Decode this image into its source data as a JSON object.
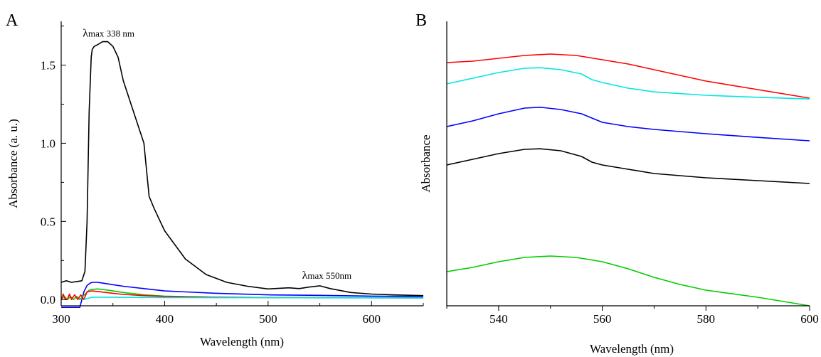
{
  "chart_data": [
    {
      "panel": "A",
      "type": "line",
      "xlabel": "Wavelength (nm)",
      "ylabel": "Absorbance (a. u.)",
      "xlim": [
        300,
        650
      ],
      "ylim": [
        -0.04,
        1.78
      ],
      "xticks": [
        300,
        400,
        500,
        600
      ],
      "yticks": [
        0.0,
        0.5,
        1.0,
        1.5
      ],
      "ytick_labels": [
        "0.0",
        "0.5",
        "1.0",
        "1.5"
      ],
      "annotations": [
        {
          "lambda": "λ",
          "text": "max 338 nm",
          "x": 338,
          "y": 1.7
        },
        {
          "lambda": "λ",
          "text": "max 550nm",
          "x": 550,
          "y": 0.15
        }
      ],
      "series": [
        {
          "color": "#000000",
          "x": [
            300,
            305,
            310,
            315,
            320,
            323,
            325,
            327,
            329,
            330,
            332,
            335,
            340,
            345,
            350,
            355,
            360,
            370,
            380,
            385,
            390,
            400,
            420,
            440,
            460,
            480,
            500,
            520,
            530,
            540,
            550,
            560,
            580,
            600,
            620,
            650
          ],
          "y": [
            0.11,
            0.12,
            0.11,
            0.115,
            0.12,
            0.18,
            0.5,
            1.2,
            1.55,
            1.6,
            1.62,
            1.63,
            1.65,
            1.65,
            1.62,
            1.55,
            1.4,
            1.2,
            1.0,
            0.66,
            0.58,
            0.44,
            0.26,
            0.16,
            0.11,
            0.085,
            0.068,
            0.075,
            0.07,
            0.08,
            0.088,
            0.07,
            0.045,
            0.035,
            0.03,
            0.025
          ]
        },
        {
          "color": "#0000ff",
          "x": [
            300,
            310,
            318,
            320,
            322,
            325,
            328,
            330,
            335,
            340,
            350,
            360,
            380,
            400,
            450,
            500,
            550,
            600,
            650
          ],
          "y": [
            -0.05,
            -0.05,
            -0.05,
            0.0,
            0.05,
            0.09,
            0.105,
            0.11,
            0.11,
            0.105,
            0.095,
            0.085,
            0.07,
            0.055,
            0.04,
            0.03,
            0.027,
            0.022,
            0.02
          ]
        },
        {
          "color": "#00cc00",
          "x": [
            300,
            303,
            306,
            309,
            312,
            315,
            318,
            321,
            324,
            327,
            330,
            335,
            340,
            350,
            360,
            380,
            400,
            450,
            500,
            550,
            600,
            650
          ],
          "y": [
            0.0,
            0.02,
            0.0,
            0.02,
            0.0,
            0.02,
            0.0,
            0.02,
            0.04,
            0.06,
            0.065,
            0.068,
            0.065,
            0.055,
            0.045,
            0.03,
            0.022,
            0.015,
            0.013,
            0.012,
            0.012,
            0.012
          ]
        },
        {
          "color": "#ff0000",
          "x": [
            300,
            302,
            304,
            306,
            308,
            310,
            313,
            316,
            319,
            322,
            325,
            330,
            340,
            350,
            360,
            380,
            400,
            450,
            500,
            550,
            600,
            650
          ],
          "y": [
            0.0,
            0.035,
            0.0,
            0.0,
            0.035,
            0.0,
            0.03,
            0.0,
            0.03,
            0.0,
            0.05,
            0.055,
            0.048,
            0.04,
            0.033,
            0.025,
            0.02,
            0.015,
            0.013,
            0.012,
            0.011,
            0.01
          ]
        },
        {
          "color": "#00e5e5",
          "x": [
            322,
            330,
            340,
            360,
            400,
            450,
            500,
            550,
            600,
            650
          ],
          "y": [
            0.0,
            0.015,
            0.015,
            0.014,
            0.013,
            0.012,
            0.012,
            0.011,
            0.011,
            0.01
          ]
        }
      ]
    },
    {
      "panel": "B",
      "type": "line",
      "xlabel": "Wavelength (nm)",
      "ylabel": "Absorbance",
      "xlim": [
        530,
        600
      ],
      "ylim": [
        0,
        1.0
      ],
      "xticks": [
        540,
        560,
        580,
        600
      ],
      "yticks": [],
      "series": [
        {
          "color": "#ff0000",
          "x": [
            530,
            535,
            540,
            545,
            550,
            555,
            560,
            565,
            570,
            580,
            590,
            600
          ],
          "y": [
            0.855,
            0.86,
            0.87,
            0.88,
            0.885,
            0.88,
            0.865,
            0.85,
            0.83,
            0.79,
            0.76,
            0.73
          ]
        },
        {
          "color": "#00e5e5",
          "x": [
            530,
            535,
            540,
            545,
            548,
            552,
            556,
            558,
            560,
            565,
            570,
            580,
            590,
            600
          ],
          "y": [
            0.78,
            0.8,
            0.82,
            0.835,
            0.837,
            0.83,
            0.815,
            0.795,
            0.785,
            0.765,
            0.752,
            0.74,
            0.733,
            0.727
          ]
        },
        {
          "color": "#0000ff",
          "x": [
            530,
            535,
            540,
            545,
            548,
            552,
            556,
            558,
            560,
            565,
            570,
            580,
            590,
            600
          ],
          "y": [
            0.63,
            0.65,
            0.675,
            0.695,
            0.698,
            0.69,
            0.675,
            0.66,
            0.645,
            0.63,
            0.62,
            0.605,
            0.592,
            0.58
          ]
        },
        {
          "color": "#000000",
          "x": [
            530,
            535,
            540,
            545,
            548,
            552,
            556,
            558,
            560,
            565,
            570,
            580,
            590,
            600
          ],
          "y": [
            0.495,
            0.515,
            0.535,
            0.55,
            0.552,
            0.545,
            0.525,
            0.505,
            0.495,
            0.48,
            0.465,
            0.45,
            0.44,
            0.43
          ]
        },
        {
          "color": "#00cc00",
          "x": [
            530,
            535,
            540,
            545,
            550,
            555,
            560,
            565,
            570,
            575,
            580,
            590,
            600
          ],
          "y": [
            0.12,
            0.135,
            0.155,
            0.17,
            0.175,
            0.17,
            0.155,
            0.13,
            0.1,
            0.075,
            0.055,
            0.03,
            0.0
          ]
        }
      ]
    }
  ]
}
